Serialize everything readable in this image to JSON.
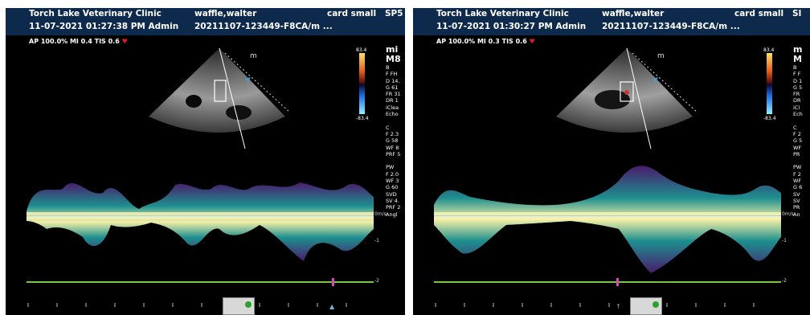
{
  "screens": [
    {
      "clinic": "Torch Lake Veterinary Clinic",
      "patient": "waffle,walter",
      "probe": "card small",
      "corner": "SP5",
      "datetime": "11-07-2021 01:27:38 PM  Admin",
      "study_id": "20211107-123449-F8CA/m ...",
      "params": "AP 100.0%  MI 0.4 TIS 0.6",
      "scale_top": "83.4",
      "scale_bottom": "-83.4",
      "sidebar_big": "mi\nM8",
      "sidebar_text": "B\nF FH\nD 14.\nG 61\nFR 31\nDR 1\niClea\nEcho\n\nC\nF 2.3\nG 58\nWF 8\nPRF 5\n\nPW\nF 2.0\nWF 3\nG 60\nSVD\nSV 4.\nPRF 2\nAngl",
      "vel_units": "0m/s",
      "vel_ticks": [
        "-1",
        "-2"
      ],
      "marker_symbol": "▲"
    },
    {
      "clinic": "Torch Lake Veterinary Clinic",
      "patient": "waffle,walter",
      "probe": "card small",
      "corner": "SI",
      "datetime": "11-07-2021 01:30:27 PM  Admin",
      "study_id": "20211107-123449-F8CA/m ...",
      "params": "AP 100.0%  MI 0.3 TIS 0.6",
      "scale_top": "83.4",
      "scale_bottom": "-83.4",
      "sidebar_big": "m\nM",
      "sidebar_text": "B\nF F\nD 1\nG 5\nFR\nDR\niCl\nEch\n\nC\nF 2\nG 5\nWF\nPR\n\nPW\nF 2\nWF\nG 6\nSV\nSV\nPR\nAn",
      "vel_units": "0m/s",
      "vel_ticks": [
        "-1",
        "-2"
      ],
      "marker_symbol": "↑"
    }
  ],
  "colors": {
    "header_bg": "#0d2a4d",
    "heart": "#e0191d",
    "green_line": "#76c83e",
    "marker": "#e040c8"
  }
}
